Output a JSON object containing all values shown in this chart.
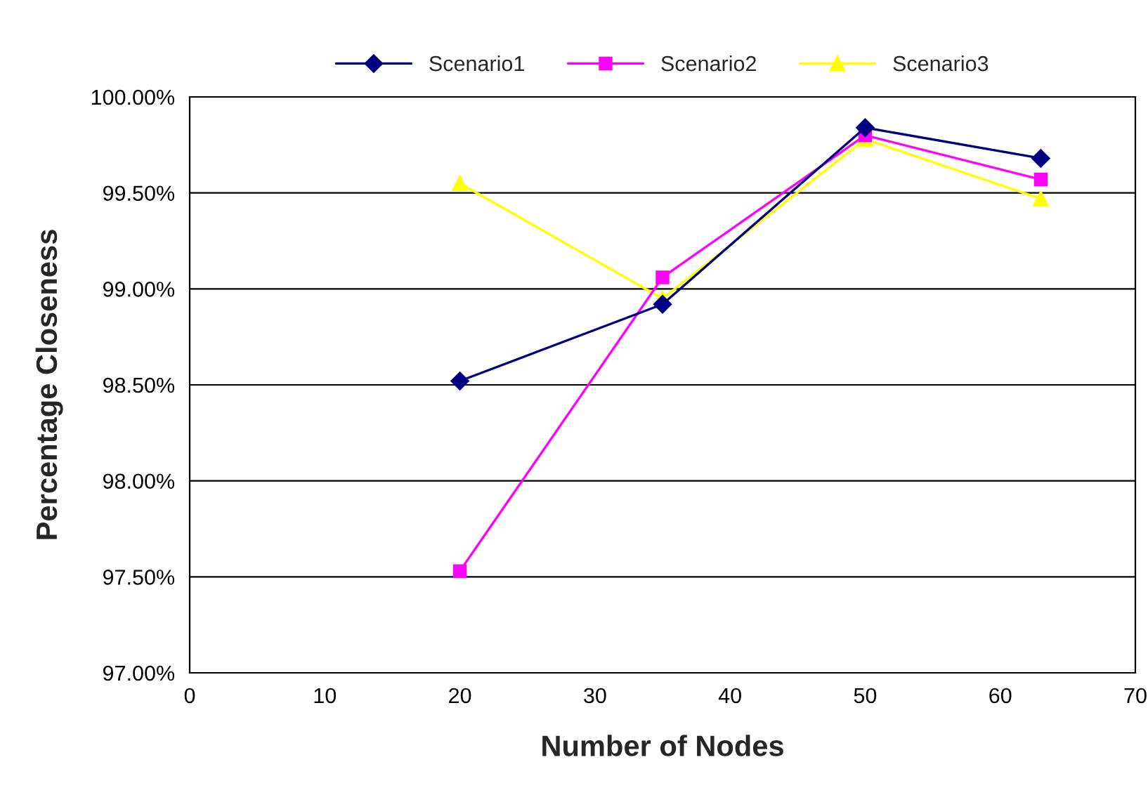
{
  "chart_data": {
    "type": "line",
    "xlabel": "Number of Nodes",
    "ylabel": "Percentage Closeness",
    "x": [
      20,
      35,
      50,
      63
    ],
    "series": [
      {
        "name": "Scenario1",
        "color": "#000080",
        "marker": "diamond",
        "values": [
          98.52,
          98.92,
          99.84,
          99.68
        ]
      },
      {
        "name": "Scenario2",
        "color": "#ff00ff",
        "marker": "square",
        "values": [
          97.53,
          99.06,
          99.8,
          99.57
        ]
      },
      {
        "name": "Scenario3",
        "color": "#ffff00",
        "marker": "triangle",
        "values": [
          99.55,
          98.95,
          99.78,
          99.47
        ]
      }
    ],
    "xlim": [
      0,
      70
    ],
    "xticks": [
      0,
      10,
      20,
      30,
      40,
      50,
      60,
      70
    ],
    "ylim": [
      97,
      100
    ],
    "yticks": [
      {
        "value": 97,
        "label": "97.00%"
      },
      {
        "value": 97.5,
        "label": "97.50%"
      },
      {
        "value": 98,
        "label": "98.00%"
      },
      {
        "value": 98.5,
        "label": "98.50%"
      },
      {
        "value": 99,
        "label": "99.00%"
      },
      {
        "value": 99.5,
        "label": "99.50%"
      },
      {
        "value": 100,
        "label": "100.00%"
      }
    ],
    "grid": "y",
    "legend": "top"
  }
}
